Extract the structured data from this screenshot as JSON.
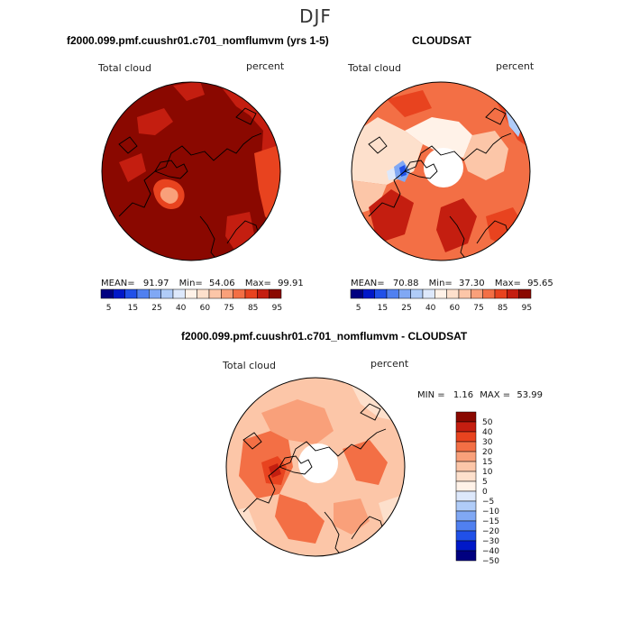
{
  "title": "DJF",
  "colors": {
    "warm": [
      "#fff2e8",
      "#fde0cc",
      "#fcc6a8",
      "#f9a07a",
      "#f36f45",
      "#e8431f",
      "#c41e10",
      "#8a0800"
    ],
    "cool": [
      "#000080",
      "#0018c8",
      "#2050e8",
      "#5080f0",
      "#80a8f4",
      "#b0ccf8",
      "#dde8fb"
    ],
    "coastline": "#000000"
  },
  "panels": {
    "model": {
      "title": "f2000.099.pmf.cuushr01.c701_nomflumvm (yrs 1-5)",
      "field_label": "Total cloud",
      "units_label": "percent",
      "stats": {
        "mean_label": "MEAN=",
        "mean": "91.97",
        "min_label": "Min=",
        "min": "54.06",
        "max_label": "Max=",
        "max": "99.91"
      },
      "colorbar_ticks": [
        "5",
        "15",
        "25",
        "40",
        "60",
        "75",
        "85",
        "95"
      ]
    },
    "cloudsat": {
      "title": "CLOUDSAT",
      "field_label": "Total cloud",
      "units_label": "percent",
      "stats": {
        "mean_label": "MEAN=",
        "mean": "70.88",
        "min_label": "Min=",
        "min": "37.30",
        "max_label": "Max=",
        "max": "95.65"
      },
      "colorbar_ticks": [
        "5",
        "15",
        "25",
        "40",
        "60",
        "75",
        "85",
        "95"
      ]
    },
    "diff": {
      "title": "f2000.099.pmf.cuushr01.c701_nomflumvm - CLOUDSAT",
      "field_label": "Total cloud",
      "units_label": "percent",
      "stats": {
        "min_label": "MIN =",
        "min": "1.16",
        "max_label": "MAX =",
        "max": "53.99"
      },
      "colorbar_ticks": [
        "50",
        "40",
        "30",
        "20",
        "15",
        "10",
        "5",
        "0",
        "−5",
        "−10",
        "−15",
        "−20",
        "−30",
        "−40",
        "−50"
      ]
    }
  }
}
